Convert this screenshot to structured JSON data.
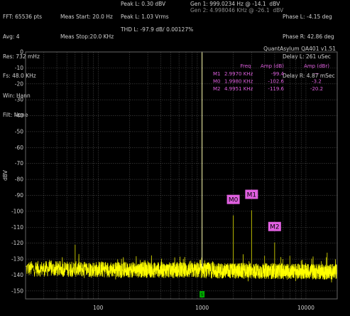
{
  "header": {
    "col1": [
      "FFT: 65536 pts",
      "Avg: 4",
      "Res: 732 mHz",
      "Fs: 48.0 KHz",
      "Win: Hann",
      "Filt: None"
    ],
    "col2": [
      "Meas Start: 20.0 Hz",
      "Meas Stop:20.0 KHz"
    ],
    "col3a": [
      "Peak L: 0.30 dBV"
    ],
    "col3b": [
      "Peak L: 1.03 Vrms"
    ],
    "col3c": [
      "THD L: -97.9 dB/ 0.00127%"
    ],
    "gen1": "Gen 1: 999.0234 Hz @ -14.1  dBV",
    "gen2": "Gen 2: 4.998046 KHz @ -26.1  dBV",
    "col5": [
      "Phase L: -4.15 deg",
      "Phase R: 42.86 deg",
      "Delay L: 261 uSec",
      "Delay R: 4.87 mSec"
    ]
  },
  "watermark": "QuantAsylum QA401 v1.51",
  "marker_table": {
    "headers": [
      "Freq",
      "Amp (dB)",
      "Amp (dBr)"
    ],
    "rows": [
      {
        "name": "M1",
        "freq": "2.9970 KHz",
        "amp": "-99.4",
        "ampr": "---"
      },
      {
        "name": "M0",
        "freq": "1.9980 KHz",
        "amp": "-102.6",
        "ampr": "-3.2"
      },
      {
        "name": "M2",
        "freq": "4.9951 KHz",
        "amp": "-119.6",
        "ampr": "-20.2"
      }
    ]
  },
  "markers": [
    {
      "label": "M0",
      "freq": 1998,
      "amp": -102.6
    },
    {
      "label": "M1",
      "freq": 2997,
      "amp": -99.4
    },
    {
      "label": "M2",
      "freq": 4995,
      "amp": -119.6
    }
  ],
  "cursor_label": "S",
  "chart_data": {
    "type": "line",
    "ylabel": "dBV",
    "xlabel": "",
    "x_scale": "log",
    "xlim": [
      20,
      20000
    ],
    "ylim": [
      -155,
      0
    ],
    "x_ticks": [
      100,
      1000,
      10000
    ],
    "x_tick_labels": [
      "100",
      "1000",
      "10000"
    ],
    "y_ticks": [
      0,
      -10,
      -20,
      -30,
      -40,
      -50,
      -60,
      -70,
      -80,
      -90,
      -100,
      -110,
      -120,
      -130,
      -140,
      -150
    ],
    "y_tick_labels": [
      "0",
      "-10",
      "-20",
      "-30",
      "-40",
      "-50",
      "-60",
      "-70",
      "-80",
      "-90",
      "-100",
      "-110",
      "-120",
      "-130",
      "-140",
      "-150"
    ],
    "grid": true,
    "colors": {
      "trace": "#ffff00",
      "spurs": "#b8b800",
      "fundamental": "#ffffb0",
      "grid": "#4a4a4a",
      "markers": "#e060e0"
    },
    "noise_floor_db": -136,
    "fundamental": {
      "freq": 1000,
      "amp": 0.3
    },
    "spurs": [
      {
        "freq": 60,
        "amp": -121
      },
      {
        "freq": 180,
        "amp": -132
      },
      {
        "freq": 300,
        "amp": -131
      },
      {
        "freq": 420,
        "amp": -133
      },
      {
        "freq": 540,
        "amp": -132
      },
      {
        "freq": 660,
        "amp": -130
      },
      {
        "freq": 780,
        "amp": -131
      },
      {
        "freq": 900,
        "amp": -132
      },
      {
        "freq": 1998,
        "amp": -102.6
      },
      {
        "freq": 2997,
        "amp": -99.4
      },
      {
        "freq": 3996,
        "amp": -128
      },
      {
        "freq": 4995,
        "amp": -119.6
      },
      {
        "freq": 5994,
        "amp": -130
      },
      {
        "freq": 7000,
        "amp": -128
      },
      {
        "freq": 7992,
        "amp": -133
      },
      {
        "freq": 8991,
        "amp": -131
      },
      {
        "freq": 10000,
        "amp": -135
      },
      {
        "freq": 12000,
        "amp": -134
      },
      {
        "freq": 14000,
        "amp": -136
      },
      {
        "freq": 16000,
        "amp": -126
      },
      {
        "freq": 18000,
        "amp": -134
      }
    ]
  }
}
